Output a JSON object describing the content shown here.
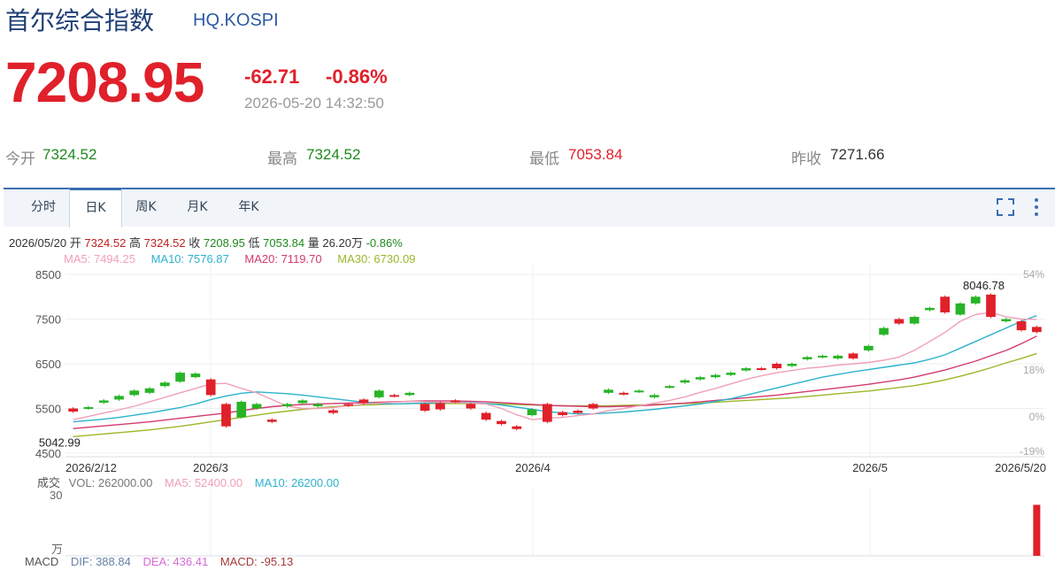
{
  "header": {
    "title": "首尔综合指数",
    "code": "HQ.KOSPI",
    "price": "7208.95",
    "change": "-62.71",
    "change_pct": "-0.86%",
    "datetime": "2026-05-20 14:32:50"
  },
  "quote": [
    {
      "label": "今开",
      "value": "7324.52",
      "color": "#1e8a1e"
    },
    {
      "label": "最高",
      "value": "7324.52",
      "color": "#1e8a1e"
    },
    {
      "label": "最低",
      "value": "7053.84",
      "color": "#e0202a"
    },
    {
      "label": "昨收",
      "value": "7271.66",
      "color": "#333333"
    }
  ],
  "tabs": [
    "分时",
    "日K",
    "周K",
    "月K",
    "年K"
  ],
  "active_tab": 1,
  "day_info": {
    "date": "2026/05/20",
    "open_label": "开",
    "open": "7324.52",
    "high_label": "高",
    "high": "7324.52",
    "close_label": "收",
    "close": "7208.95",
    "low_label": "低",
    "low": "7053.84",
    "vol_label": "量",
    "vol": "26.20万",
    "pct": "-0.86%"
  },
  "ma_legend": [
    {
      "text": "MA5: 7494.25",
      "color": "#f0a0b8"
    },
    {
      "text": "MA10: 7576.87",
      "color": "#2db3cc"
    },
    {
      "text": "MA20: 7119.70",
      "color": "#d43a6e"
    },
    {
      "text": "MA30: 6730.09",
      "color": "#9ab828"
    }
  ],
  "vol_legend": {
    "label": "成交",
    "items": [
      {
        "text": "VOL: 262000.00",
        "color": "#777777"
      },
      {
        "text": "MA5: 52400.00",
        "color": "#f0a0b8"
      },
      {
        "text": "MA10: 26200.00",
        "color": "#2db3cc"
      }
    ],
    "axis_top": "30",
    "axis_unit": "万"
  },
  "macd_legend": {
    "label": "MACD",
    "items": [
      {
        "text": "DIF: 388.84",
        "color": "#6680a8"
      },
      {
        "text": "DEA: 436.41",
        "color": "#d86ad8"
      },
      {
        "text": "MACD: -95.13",
        "color": "#a33b3b"
      }
    ]
  },
  "colors": {
    "up": "#e0202a",
    "down": "#27b427",
    "ma5": "#f0a0b8",
    "ma10": "#2db3cc",
    "ma20": "#d43a6e",
    "ma30": "#9ab828"
  },
  "chart_data": {
    "type": "candlestick",
    "y_ticks": [
      "8500",
      "7500",
      "6500",
      "5500",
      "4500"
    ],
    "y_range": [
      4500,
      8500
    ],
    "pct_ticks": [
      "54%",
      "18%",
      "0%",
      "-19%"
    ],
    "x_ticks": [
      "2026/2/12",
      "2026/3",
      "2026/4",
      "2026/5",
      "2026/5/20"
    ],
    "annotations": [
      {
        "text": "8046.78",
        "value": 8046.78
      },
      {
        "text": "5042.99",
        "value": 5042.99
      }
    ],
    "candles": [
      {
        "o": 5500,
        "c": 5430
      },
      {
        "o": 5500,
        "c": 5530
      },
      {
        "o": 5630,
        "c": 5680
      },
      {
        "o": 5700,
        "c": 5780
      },
      {
        "o": 5800,
        "c": 5900
      },
      {
        "o": 5850,
        "c": 5950
      },
      {
        "o": 6000,
        "c": 6080
      },
      {
        "o": 6100,
        "c": 6300
      },
      {
        "o": 6200,
        "c": 6280
      },
      {
        "o": 6150,
        "c": 5800
      },
      {
        "o": 5600,
        "c": 5100
      },
      {
        "o": 5300,
        "c": 5650
      },
      {
        "o": 5500,
        "c": 5600
      },
      {
        "o": 5250,
        "c": 5200
      },
      {
        "o": 5550,
        "c": 5600
      },
      {
        "o": 5620,
        "c": 5680
      },
      {
        "o": 5550,
        "c": 5600
      },
      {
        "o": 5460,
        "c": 5400
      },
      {
        "o": 5600,
        "c": 5560
      },
      {
        "o": 5700,
        "c": 5620
      },
      {
        "o": 5750,
        "c": 5900
      },
      {
        "o": 5800,
        "c": 5780
      },
      {
        "o": 5800,
        "c": 5850
      },
      {
        "o": 5600,
        "c": 5450
      },
      {
        "o": 5620,
        "c": 5480
      },
      {
        "o": 5680,
        "c": 5650
      },
      {
        "o": 5600,
        "c": 5500
      },
      {
        "o": 5400,
        "c": 5250
      },
      {
        "o": 5220,
        "c": 5150
      },
      {
        "o": 5100,
        "c": 5040
      },
      {
        "o": 5350,
        "c": 5480
      },
      {
        "o": 5600,
        "c": 5200
      },
      {
        "o": 5420,
        "c": 5350
      },
      {
        "o": 5450,
        "c": 5400
      },
      {
        "o": 5600,
        "c": 5500
      },
      {
        "o": 5850,
        "c": 5920
      },
      {
        "o": 5850,
        "c": 5820
      },
      {
        "o": 5880,
        "c": 5900
      },
      {
        "o": 5750,
        "c": 5800
      },
      {
        "o": 5980,
        "c": 6000
      },
      {
        "o": 6080,
        "c": 6130
      },
      {
        "o": 6150,
        "c": 6200
      },
      {
        "o": 6200,
        "c": 6250
      },
      {
        "o": 6250,
        "c": 6300
      },
      {
        "o": 6350,
        "c": 6400
      },
      {
        "o": 6400,
        "c": 6380
      },
      {
        "o": 6500,
        "c": 6400
      },
      {
        "o": 6450,
        "c": 6500
      },
      {
        "o": 6600,
        "c": 6650
      },
      {
        "o": 6650,
        "c": 6680
      },
      {
        "o": 6620,
        "c": 6680
      },
      {
        "o": 6730,
        "c": 6620
      },
      {
        "o": 6800,
        "c": 6900
      },
      {
        "o": 7150,
        "c": 7300
      },
      {
        "o": 7500,
        "c": 7400
      },
      {
        "o": 7400,
        "c": 7550
      },
      {
        "o": 7700,
        "c": 7750
      },
      {
        "o": 8000,
        "c": 7650
      },
      {
        "o": 7600,
        "c": 7850
      },
      {
        "o": 7850,
        "c": 8000
      },
      {
        "o": 8046.78,
        "c": 7550
      },
      {
        "o": 7450,
        "c": 7500
      },
      {
        "o": 7450,
        "c": 7250
      },
      {
        "o": 7324.52,
        "c": 7208.95
      }
    ],
    "ma": {
      "ma5": [
        5250,
        5320,
        5400,
        5470,
        5550,
        5650,
        5750,
        5850,
        5950,
        6050,
        6060,
        5950,
        5850,
        5700,
        5550,
        5500,
        5500,
        5520,
        5560,
        5600,
        5620,
        5640,
        5660,
        5650,
        5640,
        5630,
        5620,
        5600,
        5500,
        5360,
        5250,
        5280,
        5300,
        5340,
        5380,
        5450,
        5500,
        5560,
        5620,
        5680,
        5760,
        5860,
        5950,
        6050,
        6150,
        6230,
        6300,
        6350,
        6400,
        6430,
        6470,
        6500,
        6530,
        6580,
        6650,
        6800,
        7000,
        7200,
        7450,
        7600,
        7650,
        7550,
        7500,
        7494.25
      ],
      "ma10": [
        5200,
        5230,
        5260,
        5300,
        5350,
        5400,
        5460,
        5520,
        5600,
        5700,
        5780,
        5840,
        5870,
        5850,
        5830,
        5800,
        5760,
        5720,
        5680,
        5640,
        5610,
        5600,
        5610,
        5620,
        5630,
        5640,
        5630,
        5610,
        5580,
        5530,
        5480,
        5430,
        5400,
        5380,
        5380,
        5400,
        5420,
        5450,
        5480,
        5520,
        5560,
        5600,
        5660,
        5720,
        5800,
        5880,
        5960,
        6040,
        6120,
        6200,
        6260,
        6320,
        6370,
        6420,
        6470,
        6520,
        6600,
        6700,
        6850,
        7000,
        7150,
        7300,
        7450,
        7576.87
      ],
      "ma20": [
        5050,
        5080,
        5110,
        5140,
        5170,
        5200,
        5240,
        5280,
        5320,
        5360,
        5400,
        5450,
        5500,
        5540,
        5570,
        5590,
        5600,
        5610,
        5620,
        5630,
        5640,
        5650,
        5660,
        5670,
        5670,
        5670,
        5660,
        5650,
        5630,
        5610,
        5590,
        5570,
        5560,
        5550,
        5540,
        5540,
        5550,
        5560,
        5580,
        5600,
        5620,
        5650,
        5680,
        5710,
        5740,
        5770,
        5800,
        5840,
        5880,
        5920,
        5960,
        6000,
        6040,
        6090,
        6140,
        6200,
        6280,
        6360,
        6460,
        6560,
        6680,
        6800,
        6950,
        7119.7
      ],
      "ma30": [
        4870,
        4900,
        4930,
        4960,
        4990,
        5020,
        5060,
        5100,
        5150,
        5200,
        5250,
        5300,
        5350,
        5400,
        5440,
        5480,
        5510,
        5540,
        5560,
        5580,
        5590,
        5600,
        5610,
        5610,
        5610,
        5610,
        5610,
        5610,
        5600,
        5590,
        5580,
        5570,
        5560,
        5560,
        5560,
        5560,
        5570,
        5580,
        5590,
        5600,
        5610,
        5620,
        5640,
        5660,
        5680,
        5700,
        5720,
        5740,
        5770,
        5800,
        5830,
        5860,
        5890,
        5930,
        5970,
        6010,
        6070,
        6140,
        6220,
        6310,
        6410,
        6520,
        6620,
        6730.09
      ]
    },
    "last_volume_wan": 26.2,
    "volume_max_wan": 30
  }
}
